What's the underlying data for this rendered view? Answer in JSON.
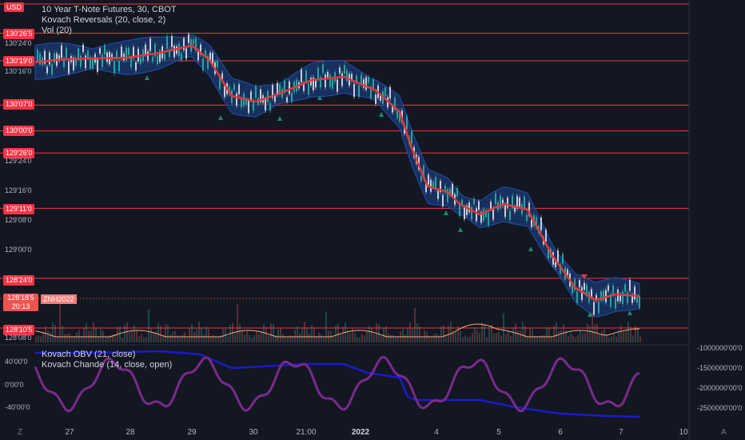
{
  "header": {
    "currency": "USD",
    "title": "10 Year T-Note Futures, 30, CBOT",
    "indicator1": "Kovach Reversals (20, close, 2)",
    "indicator2": "Vol (20)"
  },
  "price_axis": {
    "labels": [
      "130'24'0",
      "130'16'0",
      "129'24'0",
      "129'16'0",
      "129'08'0",
      "129'00'0",
      "128'08'0"
    ],
    "levels": [
      "130'26'5",
      "130'19'0",
      "130'07'0",
      "130'00'0",
      "129'26'0",
      "129'11'0",
      "128'24'0",
      "128'10'5"
    ],
    "current_price": "128'18'5",
    "countdown": "20:13",
    "symbol": "ZNH2022"
  },
  "lower_pane": {
    "indicator1": "Kovach OBV (21, close)",
    "indicator2": "Kovach Chande (14, close, open)",
    "left_labels": [
      "40'00'0",
      "0'00'0",
      "-40'00'0"
    ],
    "right_labels": [
      "-1000000'00'0",
      "-1500000'00'0",
      "-2000000'00'0",
      "-2500000'00'0"
    ]
  },
  "time_axis": {
    "labels": [
      "27",
      "28",
      "29",
      "30",
      "21:00",
      "2022",
      "4",
      "5",
      "6",
      "7",
      "10"
    ]
  },
  "corners": {
    "left": "Z",
    "right": "A"
  },
  "colors": {
    "background": "#131722",
    "level_line": "#f23645",
    "band_fill": "#1b3a73",
    "band_edge": "#1e4fb4",
    "ma_line": "#e03a3a",
    "candle_up": "#26a69a",
    "candle_down": "#c8cdd6",
    "osc_line": "#f5a97f",
    "obv_line": "#1a1acc",
    "chande_line": "#7b2a8c"
  },
  "chart_data": {
    "type": "line",
    "title": "10 Year T-Note Futures, 30, CBOT",
    "x": [
      "27",
      "28",
      "29",
      "30",
      "21:00",
      "2022",
      "4",
      "5",
      "6",
      "7"
    ],
    "series": [
      {
        "name": "Kovach Reversals (20, close, 2)",
        "values": [
          "130'19'0",
          "130'20'0",
          "130'22'0",
          "130'08'0",
          "130'12'0",
          "130'16'0",
          "129'12'0",
          "129'10'0",
          "128'28'0",
          "128'20'0"
        ]
      },
      {
        "name": "Kovach OBV (21, close)",
        "values": [
          -1000000,
          -1050000,
          -1100000,
          -1400000,
          -1450000,
          -1500000,
          -1900000,
          -2100000,
          -2250000,
          -2350000
        ]
      },
      {
        "name": "Kovach Chande (14, close, open)",
        "values": [
          -5,
          40,
          -20,
          -30,
          30,
          -20,
          -50,
          40,
          -10,
          20
        ]
      }
    ],
    "ylabel": "",
    "levels": [
      "130'26'5",
      "130'19'0",
      "130'07'0",
      "130'00'0",
      "129'26'0",
      "129'11'0",
      "128'24'0",
      "128'10'5"
    ]
  }
}
